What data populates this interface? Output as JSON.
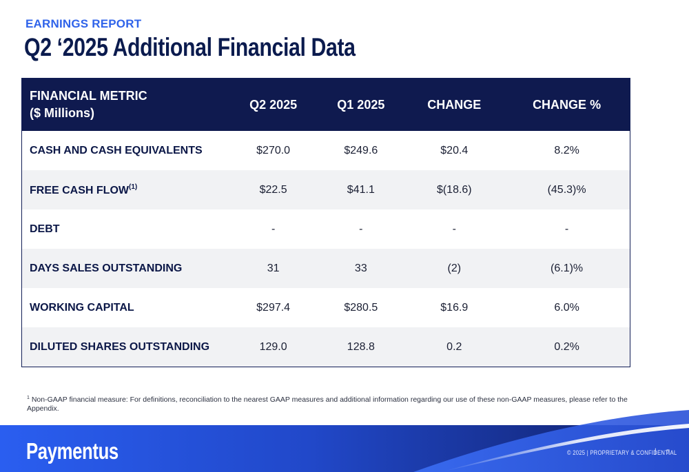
{
  "header": {
    "eyebrow": "EARNINGS REPORT",
    "title": "Q2 ‘2025 Additional Financial Data"
  },
  "table": {
    "columns": {
      "metric_line1": "FINANCIAL METRIC",
      "metric_line2": "($ Millions)",
      "q2": "Q2 2025",
      "q1": "Q1 2025",
      "change": "CHANGE",
      "change_pct": "CHANGE %"
    },
    "rows": [
      {
        "metric": "CASH AND CASH EQUIVALENTS",
        "q2": "$270.0",
        "q1": "$249.6",
        "change": "$20.4",
        "change_pct": "8.2%"
      },
      {
        "metric": "FREE CASH FLOW",
        "footnote": "(1)",
        "q2": "$22.5",
        "q1": "$41.1",
        "change": "$(18.6)",
        "change_pct": "(45.3)%"
      },
      {
        "metric": "DEBT",
        "q2": "-",
        "q1": "-",
        "change": "-",
        "change_pct": "-"
      },
      {
        "metric": "DAYS SALES OUTSTANDING",
        "q2": "31",
        "q1": "33",
        "change": "(2)",
        "change_pct": "(6.1)%"
      },
      {
        "metric": "WORKING CAPITAL",
        "q2": "$297.4",
        "q1": "$280.5",
        "change": "$16.9",
        "change_pct": "6.0%"
      },
      {
        "metric": "DILUTED SHARES OUTSTANDING",
        "q2": "129.0",
        "q1": "128.8",
        "change": "0.2",
        "change_pct": "0.2%"
      }
    ]
  },
  "footnote": {
    "marker": "1",
    "text": "Non-GAAP financial measure: For definitions, reconciliation to the nearest GAAP measures and additional information regarding our use of these non-GAAP measures, please refer to the Appendix."
  },
  "footer": {
    "logo": "Paymentus",
    "copyright": "© 2025 | PROPRIETARY & CONFIDENTIAL",
    "separator": "|",
    "page_number": "7"
  },
  "colors": {
    "accent": "#2f63ea",
    "navy": "#0f1a4f",
    "row_alt": "#f1f2f4"
  }
}
